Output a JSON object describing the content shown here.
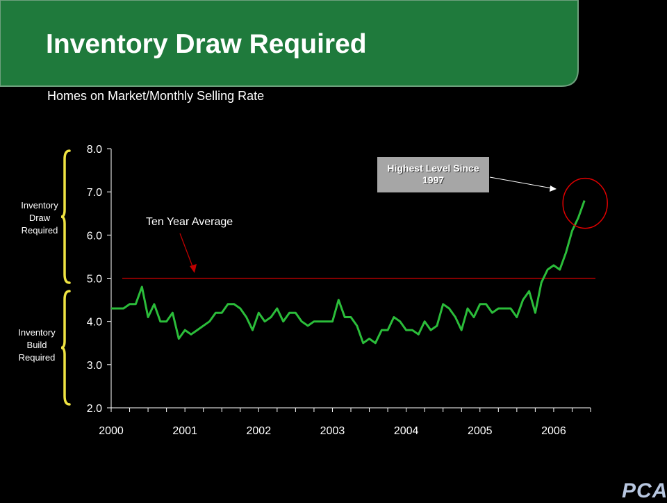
{
  "slide": {
    "title": "Inventory Draw Required",
    "subtitle": "Homes on Market/Monthly Selling Rate",
    "logo_text": "PCA",
    "colors": {
      "banner": "#1f7a3c",
      "line": "#2bbd3a",
      "average_line": "#c00000",
      "bracket": "#f0e442",
      "callout_circle": "#e00000"
    }
  },
  "annotations": {
    "draw_label": "Inventory Draw Required",
    "build_label": "Inventory Build Required",
    "highlight": "Highest Level Since 1997",
    "average_label": "Ten Year Average"
  },
  "chart_data": {
    "type": "line",
    "title": "",
    "xlabel": "",
    "ylabel": "",
    "x_ticks": [
      "2000",
      "2001",
      "2002",
      "2003",
      "2004",
      "2005",
      "2006"
    ],
    "y_ticks": [
      "2.0",
      "3.0",
      "4.0",
      "5.0",
      "6.0",
      "7.0",
      "8.0"
    ],
    "ylim": [
      2.0,
      8.0
    ],
    "xlim": [
      2000.0,
      2006.5
    ],
    "reference_lines": [
      {
        "name": "Ten Year Average",
        "value": 5.0
      }
    ],
    "series": [
      {
        "x": [
          2000.0,
          2000.083,
          2000.167,
          2000.25,
          2000.333,
          2000.417,
          2000.5,
          2000.583,
          2000.667,
          2000.75,
          2000.833,
          2000.917,
          2001.0,
          2001.083,
          2001.167,
          2001.25,
          2001.333,
          2001.417,
          2001.5,
          2001.583,
          2001.667,
          2001.75,
          2001.833,
          2001.917,
          2002.0,
          2002.083,
          2002.167,
          2002.25,
          2002.333,
          2002.417,
          2002.5,
          2002.583,
          2002.667,
          2002.75,
          2002.833,
          2002.917,
          2003.0,
          2003.083,
          2003.167,
          2003.25,
          2003.333,
          2003.417,
          2003.5,
          2003.583,
          2003.667,
          2003.75,
          2003.833,
          2003.917,
          2004.0,
          2004.083,
          2004.167,
          2004.25,
          2004.333,
          2004.417,
          2004.5,
          2004.583,
          2004.667,
          2004.75,
          2004.833,
          2004.917,
          2005.0,
          2005.083,
          2005.167,
          2005.25,
          2005.333,
          2005.417,
          2005.5,
          2005.583,
          2005.667,
          2005.75,
          2005.833,
          2005.917,
          2006.0,
          2006.083,
          2006.167,
          2006.25,
          2006.333,
          2006.417
        ],
        "values": [
          4.3,
          4.3,
          4.3,
          4.4,
          4.4,
          4.8,
          4.1,
          4.4,
          4.0,
          4.0,
          4.2,
          3.6,
          3.8,
          3.7,
          3.8,
          3.9,
          4.0,
          4.2,
          4.2,
          4.4,
          4.4,
          4.3,
          4.1,
          3.8,
          4.2,
          4.0,
          4.1,
          4.3,
          4.0,
          4.2,
          4.2,
          4.0,
          3.9,
          4.0,
          4.0,
          4.0,
          4.0,
          4.5,
          4.1,
          4.1,
          3.9,
          3.5,
          3.6,
          3.5,
          3.8,
          3.8,
          4.1,
          4.0,
          3.8,
          3.8,
          3.7,
          4.0,
          3.8,
          3.9,
          4.4,
          4.3,
          4.1,
          3.8,
          4.3,
          4.1,
          4.4,
          4.4,
          4.2,
          4.3,
          4.3,
          4.3,
          4.1,
          4.5,
          4.7,
          4.2,
          4.9,
          5.2,
          5.3,
          5.2,
          5.6,
          6.1,
          6.4,
          6.8
        ]
      }
    ]
  }
}
